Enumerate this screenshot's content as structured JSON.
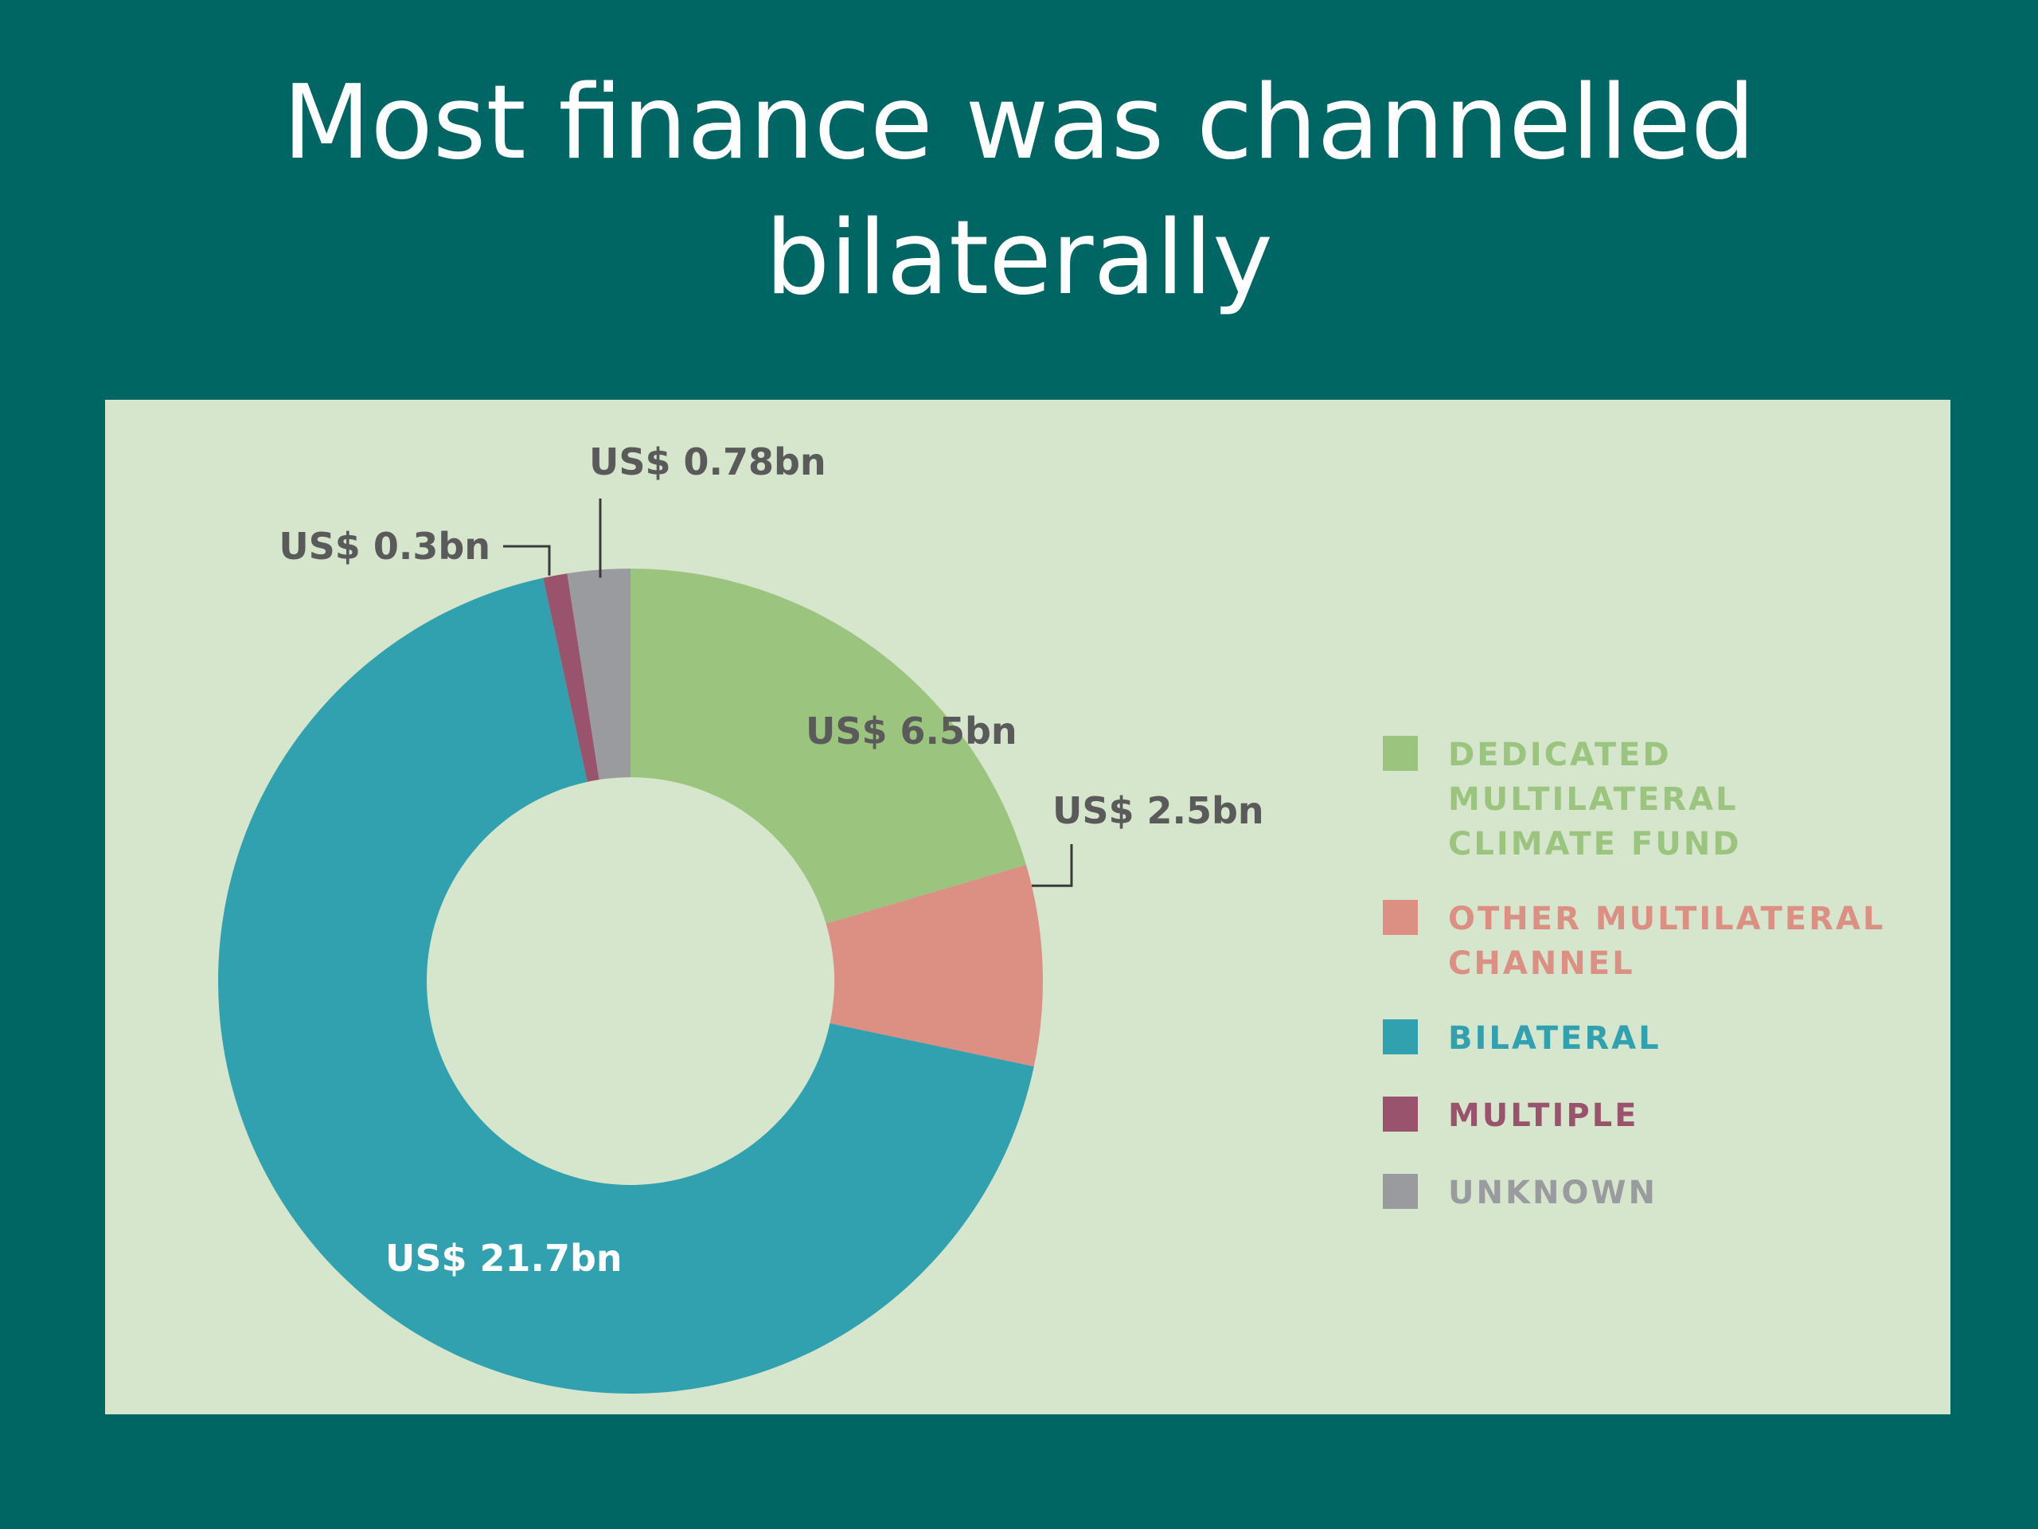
{
  "slide": {
    "title_line1": "Most finance was channelled",
    "title_line2": "bilaterally"
  },
  "chart_data": {
    "type": "pie",
    "donut": true,
    "title": "",
    "unit": "US$ bn",
    "segments": [
      {
        "name": "DEDICATED MULTILATERAL CLIMATE FUND",
        "value": 6.5,
        "label": "US$ 6.5bn",
        "color": "#9bc47f"
      },
      {
        "name": "OTHER MULTILATERAL CHANNEL",
        "value": 2.5,
        "label": "US$ 2.5bn",
        "color": "#db9083"
      },
      {
        "name": "BILATERAL",
        "value": 21.7,
        "label": "US$ 21.7bn",
        "color": "#31a1b0"
      },
      {
        "name": "MULTIPLE",
        "value": 0.3,
        "label": "US$ 0.3bn",
        "color": "#9a536d"
      },
      {
        "name": "UNKNOWN",
        "value": 0.78,
        "label": "US$ 0.78bn",
        "color": "#999b9f"
      }
    ],
    "legend_position": "right",
    "legend": [
      {
        "line1": "DEDICATED MULTILATERAL",
        "line2": "CLIMATE FUND",
        "text_color": "#9bc47f",
        "swatch_color": "#9bc47f"
      },
      {
        "line1": "OTHER MULTILATERAL",
        "line2": "CHANNEL",
        "text_color": "#db9083",
        "swatch_color": "#db9083"
      },
      {
        "line1": "BILATERAL",
        "line2": "",
        "text_color": "#31a1b0",
        "swatch_color": "#31a1b0"
      },
      {
        "line1": "MULTIPLE",
        "line2": "",
        "text_color": "#9a536d",
        "swatch_color": "#9a536d"
      },
      {
        "line1": "UNKNOWN",
        "line2": "",
        "text_color": "#999b9f",
        "swatch_color": "#999b9f"
      }
    ]
  },
  "colors": {
    "slide_background": "#006664",
    "panel_background": "#d6e6cc",
    "label_dark": "#5a5a5a",
    "label_light": "#ffffff"
  }
}
